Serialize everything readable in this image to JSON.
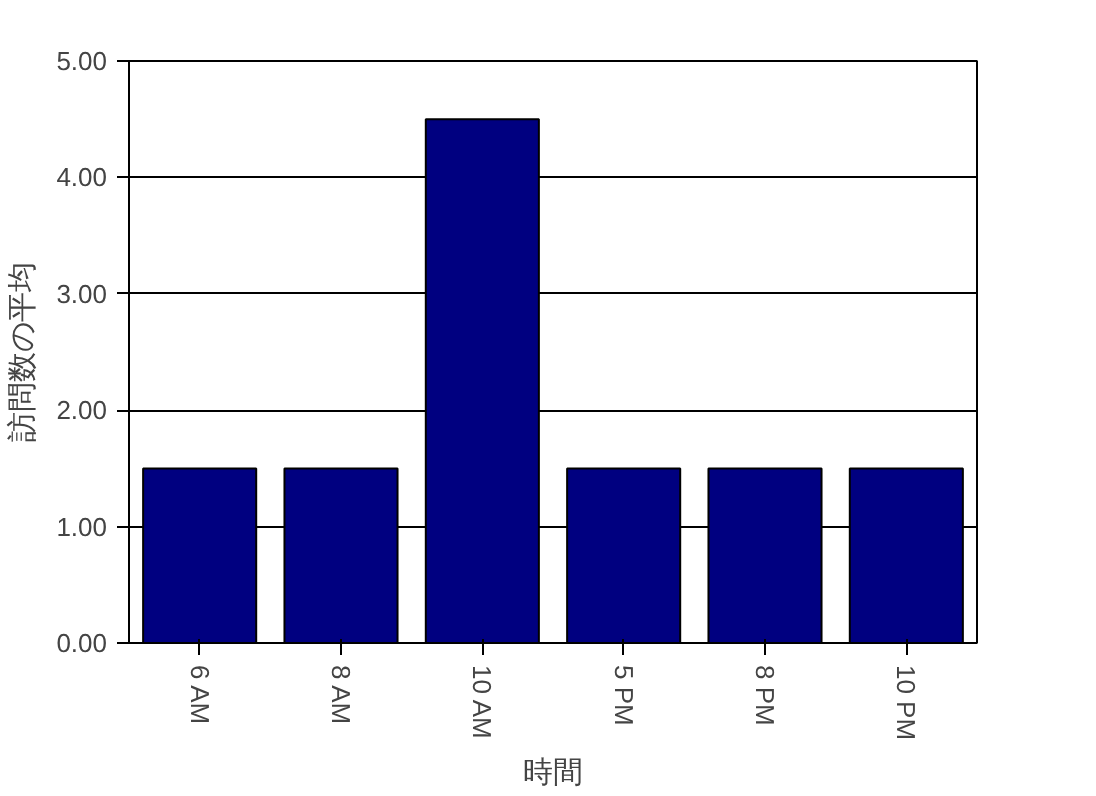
{
  "chart_data": {
    "type": "bar",
    "xlabel": "時間",
    "ylabel": "訪問数の平均",
    "categories": [
      "6 AM",
      "8 AM",
      "10 AM",
      "5 PM",
      "8 PM",
      "10 PM"
    ],
    "values": [
      1.5,
      1.5,
      4.5,
      1.5,
      1.5,
      1.5
    ],
    "color": "#000080",
    "ylim": [
      0,
      5
    ],
    "yticks": [
      {
        "value": 0,
        "label": "0.00"
      },
      {
        "value": 1,
        "label": "1.00"
      },
      {
        "value": 2,
        "label": "2.00"
      },
      {
        "value": 3,
        "label": "3.00"
      },
      {
        "value": 4,
        "label": "4.00"
      },
      {
        "value": 5,
        "label": "5.00"
      }
    ],
    "grid": "y"
  }
}
